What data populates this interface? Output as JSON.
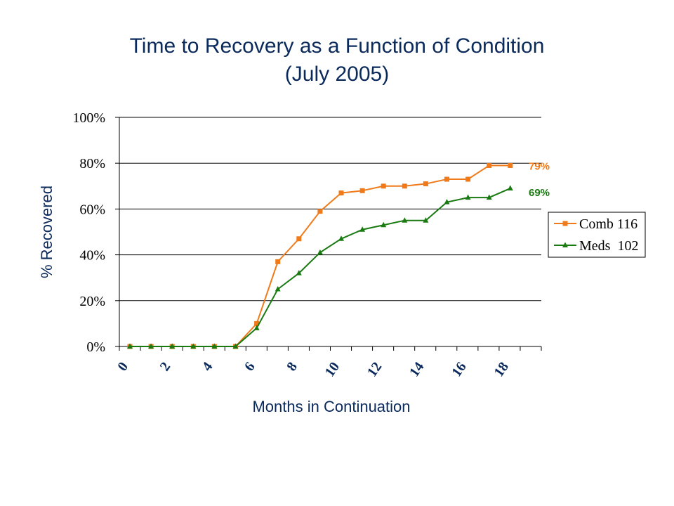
{
  "chart_data": {
    "type": "line",
    "title_line1": "Time to Recovery as a Function of Condition",
    "title_line2": "(July 2005)",
    "xlabel": "Months in Continuation",
    "ylabel": "% Recovered",
    "xlim": [
      0,
      20
    ],
    "ylim": [
      0,
      100
    ],
    "x_tick_values": [
      0,
      2,
      4,
      6,
      8,
      10,
      12,
      14,
      16,
      18
    ],
    "x_tick_labels": [
      "0",
      "2",
      "4",
      "6",
      "8",
      "10",
      "12",
      "14",
      "16",
      "18"
    ],
    "y_tick_values": [
      0,
      20,
      40,
      60,
      80,
      100
    ],
    "y_tick_labels": [
      "0%",
      "20%",
      "40%",
      "60%",
      "80%",
      "100%"
    ],
    "x": [
      0,
      1,
      2,
      3,
      4,
      5,
      6,
      7,
      8,
      9,
      10,
      11,
      12,
      13,
      14,
      15,
      16,
      17,
      18
    ],
    "grid": "horizontal",
    "legend_position": "right",
    "series": [
      {
        "name": "Comb 116",
        "color": "#f07a1a",
        "marker": "square",
        "values": [
          0,
          0,
          0,
          0,
          0,
          0,
          10,
          37,
          47,
          59,
          67,
          68,
          70,
          70,
          71,
          73,
          73,
          79,
          79
        ],
        "end_label": "79%"
      },
      {
        "name": "Meds  102",
        "color": "#1a7a12",
        "marker": "triangle",
        "values": [
          0,
          0,
          0,
          0,
          0,
          0,
          8,
          25,
          32,
          41,
          47,
          51,
          53,
          55,
          55,
          63,
          65,
          65,
          69
        ],
        "end_label": "69%"
      }
    ]
  }
}
